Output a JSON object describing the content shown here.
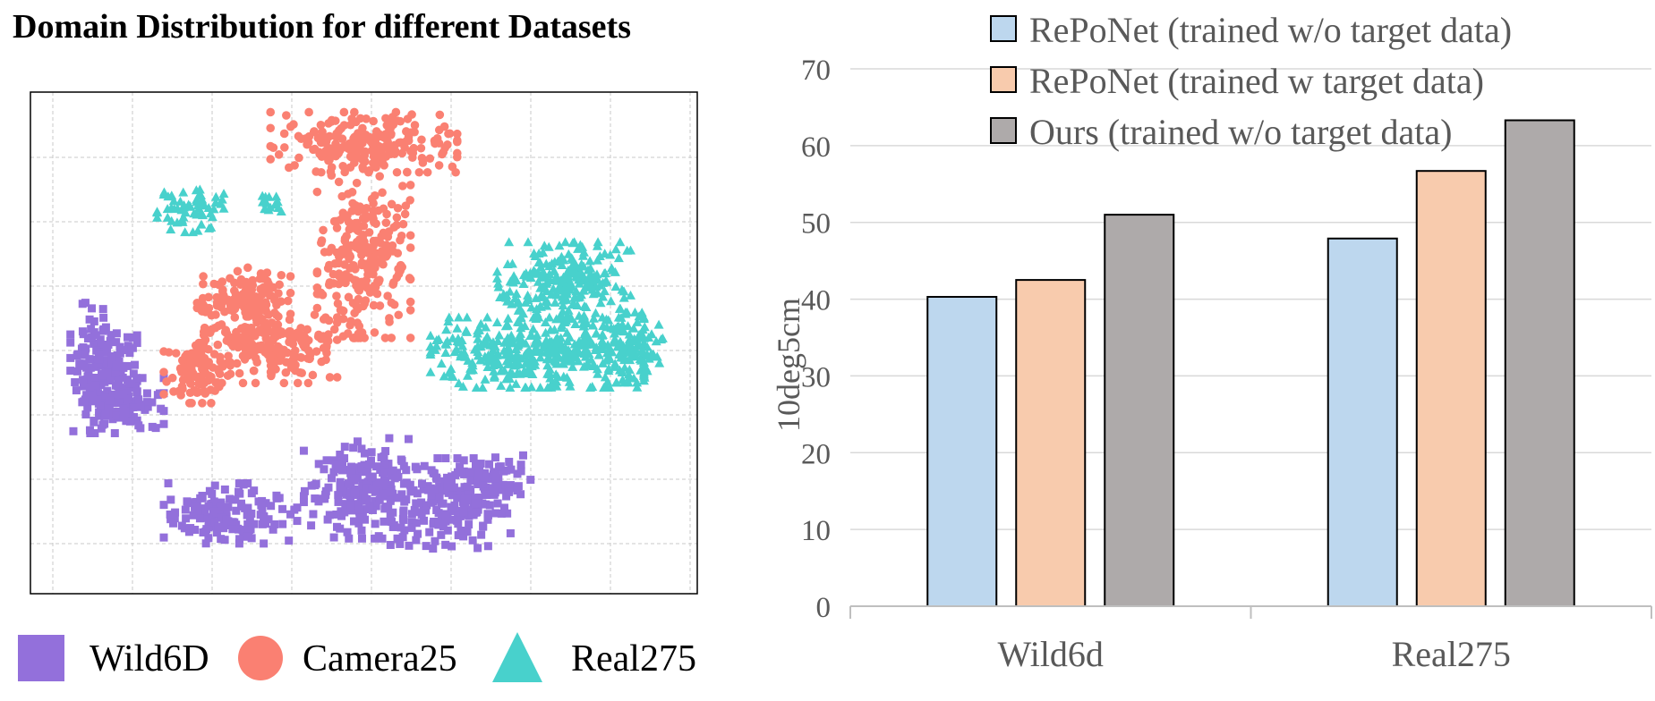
{
  "scatter": {
    "title": "Domain Distribution for different Datasets",
    "legend": [
      {
        "label": "Wild6D",
        "marker": "square",
        "color": "#9370DB"
      },
      {
        "label": "Camera25",
        "marker": "circle",
        "color": "#FA8072"
      },
      {
        "label": "Real275",
        "marker": "triangle",
        "color": "#48D1CC"
      }
    ]
  },
  "chart_data": [
    {
      "type": "scatter",
      "title": "Domain Distribution for different Datasets",
      "xlabel": "",
      "ylabel": "",
      "grid": true,
      "axis_ticks_labeled": false,
      "legend_position": "bottom",
      "series": [
        {
          "name": "Wild6D",
          "marker": "square",
          "color": "#9370DB",
          "clusters": [
            {
              "cx": 0.11,
              "cy": 0.55,
              "rx": 0.05,
              "ry": 0.13,
              "n": 180
            },
            {
              "cx": 0.14,
              "cy": 0.62,
              "rx": 0.06,
              "ry": 0.05,
              "n": 80
            },
            {
              "cx": 0.3,
              "cy": 0.84,
              "rx": 0.1,
              "ry": 0.06,
              "n": 150
            },
            {
              "cx": 0.5,
              "cy": 0.79,
              "rx": 0.09,
              "ry": 0.1,
              "n": 200
            },
            {
              "cx": 0.63,
              "cy": 0.82,
              "rx": 0.09,
              "ry": 0.09,
              "n": 180
            },
            {
              "cx": 0.7,
              "cy": 0.77,
              "rx": 0.05,
              "ry": 0.05,
              "n": 60
            }
          ]
        },
        {
          "name": "Camera25",
          "marker": "circle",
          "color": "#FA8072",
          "clusters": [
            {
              "cx": 0.5,
              "cy": 0.1,
              "rx": 0.14,
              "ry": 0.06,
              "n": 220
            },
            {
              "cx": 0.5,
              "cy": 0.32,
              "rx": 0.07,
              "ry": 0.17,
              "n": 260
            },
            {
              "cx": 0.32,
              "cy": 0.41,
              "rx": 0.07,
              "ry": 0.06,
              "n": 150
            },
            {
              "cx": 0.36,
              "cy": 0.51,
              "rx": 0.1,
              "ry": 0.07,
              "n": 200
            },
            {
              "cx": 0.25,
              "cy": 0.56,
              "rx": 0.05,
              "ry": 0.06,
              "n": 90
            }
          ]
        },
        {
          "name": "Real275",
          "marker": "triangle",
          "color": "#48D1CC",
          "clusters": [
            {
              "cx": 0.24,
              "cy": 0.23,
              "rx": 0.05,
              "ry": 0.05,
              "n": 60
            },
            {
              "cx": 0.36,
              "cy": 0.22,
              "rx": 0.02,
              "ry": 0.02,
              "n": 15
            },
            {
              "cx": 0.8,
              "cy": 0.38,
              "rx": 0.1,
              "ry": 0.08,
              "n": 250
            },
            {
              "cx": 0.76,
              "cy": 0.52,
              "rx": 0.16,
              "ry": 0.07,
              "n": 380
            },
            {
              "cx": 0.89,
              "cy": 0.51,
              "rx": 0.06,
              "ry": 0.07,
              "n": 120
            }
          ]
        }
      ]
    },
    {
      "type": "bar",
      "title": "",
      "categories": [
        "Wild6d",
        "Real275"
      ],
      "series": [
        {
          "name": "RePoNet (trained w/o target data)",
          "color": "#BDD7EE",
          "values": [
            40.3,
            47.9
          ]
        },
        {
          "name": "RePoNet (trained w target data)",
          "color": "#F8CBAD",
          "values": [
            42.5,
            56.7
          ]
        },
        {
          "name": "Ours (trained w/o target data)",
          "color": "#AEAAAA",
          "values": [
            51.0,
            63.3
          ]
        }
      ],
      "xlabel": "",
      "ylabel": "10deg5cm",
      "ylim": [
        0,
        70
      ],
      "yticks": [
        0,
        10,
        20,
        30,
        40,
        50,
        60,
        70
      ],
      "grid": true,
      "legend_position": "top"
    }
  ]
}
